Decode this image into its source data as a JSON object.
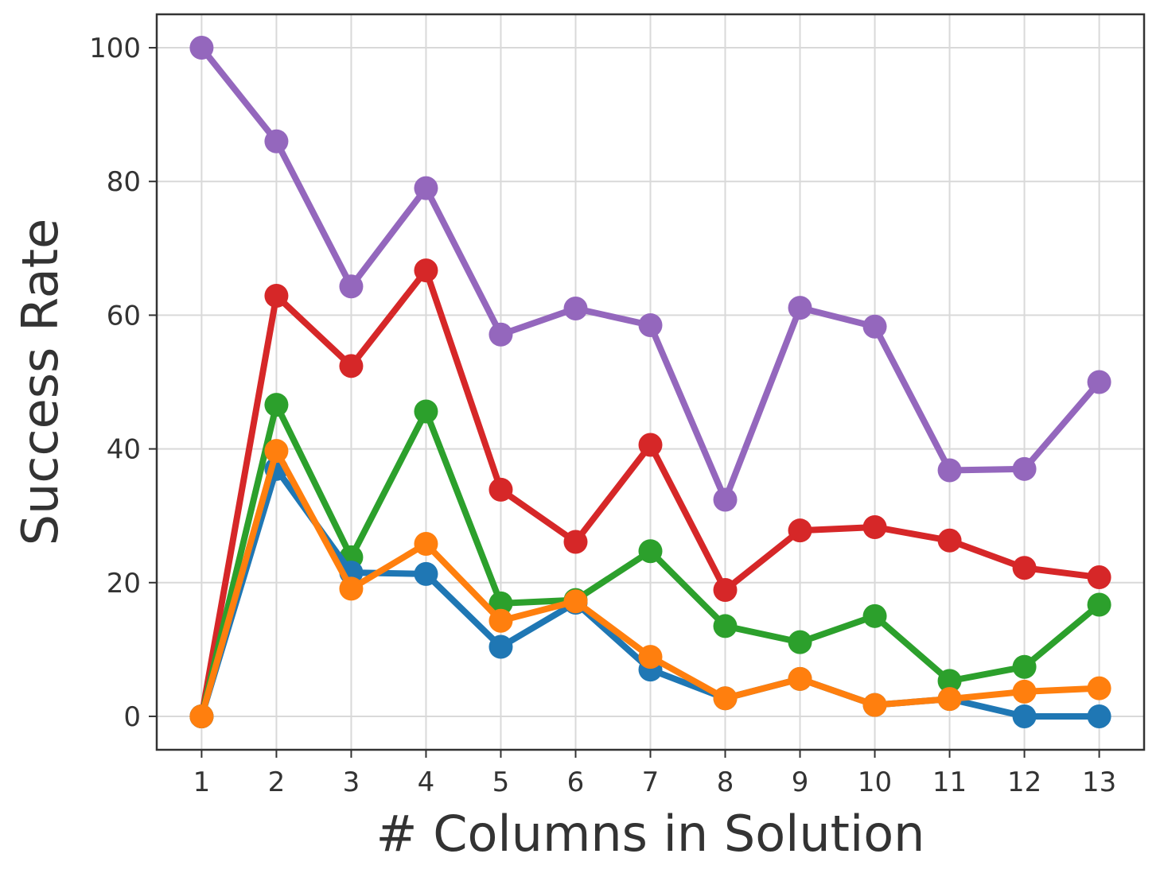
{
  "chart_data": {
    "type": "line",
    "xlabel": "# Columns in Solution",
    "ylabel": "Success Rate",
    "x": [
      1,
      2,
      3,
      4,
      5,
      6,
      7,
      8,
      9,
      10,
      11,
      12,
      13
    ],
    "xlim": [
      0.4,
      13.6
    ],
    "ylim": [
      -5,
      105
    ],
    "yticks": [
      0,
      20,
      40,
      60,
      80,
      100
    ],
    "grid": true,
    "series": [
      {
        "color": "#9467bd",
        "values": [
          100,
          86,
          64.3,
          79,
          57.1,
          61,
          58.5,
          32.4,
          61.1,
          58.3,
          36.8,
          37,
          50
        ]
      },
      {
        "color": "#d62728",
        "values": [
          0,
          62.9,
          52.4,
          66.7,
          33.9,
          26.1,
          40.6,
          18.9,
          27.8,
          28.3,
          26.3,
          22.2,
          20.8
        ]
      },
      {
        "color": "#2ca02c",
        "values": [
          0,
          46.6,
          23.8,
          45.6,
          16.9,
          17.4,
          24.7,
          13.5,
          11.1,
          15,
          5.3,
          7.4,
          16.7
        ]
      },
      {
        "color": "#1f77b4",
        "values": [
          0,
          37,
          21.5,
          21.3,
          10.4,
          17,
          7,
          2.7,
          5.6,
          1.7,
          2.6,
          0,
          0
        ]
      },
      {
        "color": "#ff7f0e",
        "values": [
          0,
          39.7,
          19.1,
          25.8,
          14.3,
          17.2,
          8.9,
          2.7,
          5.6,
          1.7,
          2.6,
          3.7,
          4.2
        ]
      }
    ]
  }
}
